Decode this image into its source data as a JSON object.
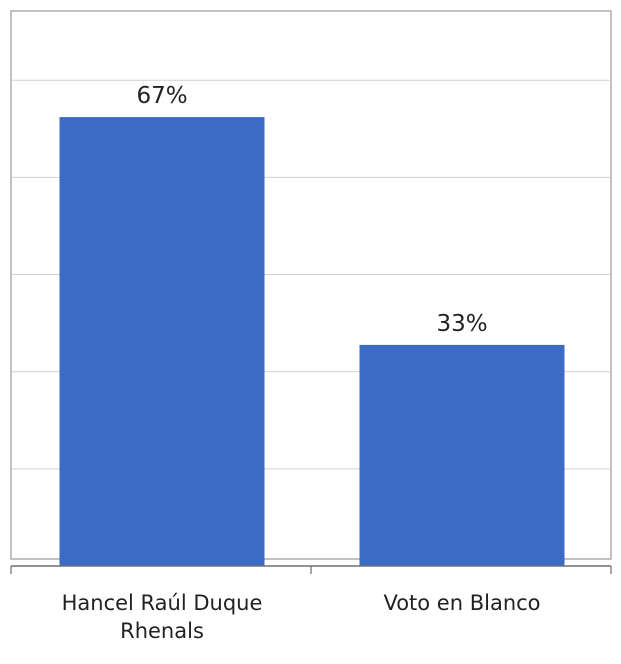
{
  "chart_data": {
    "type": "bar",
    "title": "",
    "xlabel": "",
    "ylabel": "",
    "categories": [
      "Hancel Raúl Duque Rhenals",
      "Voto en Blanco"
    ],
    "category_lines": [
      [
        "Hancel Raúl Duque",
        "Rhenals"
      ],
      [
        "Voto en Blanco"
      ]
    ],
    "values": [
      67,
      33
    ],
    "value_labels": [
      "67%",
      "33%"
    ],
    "value_unit": "%",
    "ylim": [
      0,
      100
    ],
    "gridlines": [
      0,
      14.5,
      29,
      43.5,
      58,
      72.5,
      87
    ],
    "grid": true,
    "legend": "none",
    "colors": {
      "bar": "#3a6cc4",
      "grid": "#d0d0d0",
      "axis": "#6e6e6e",
      "text": "#222222",
      "frame": "#9a9a9a"
    }
  }
}
